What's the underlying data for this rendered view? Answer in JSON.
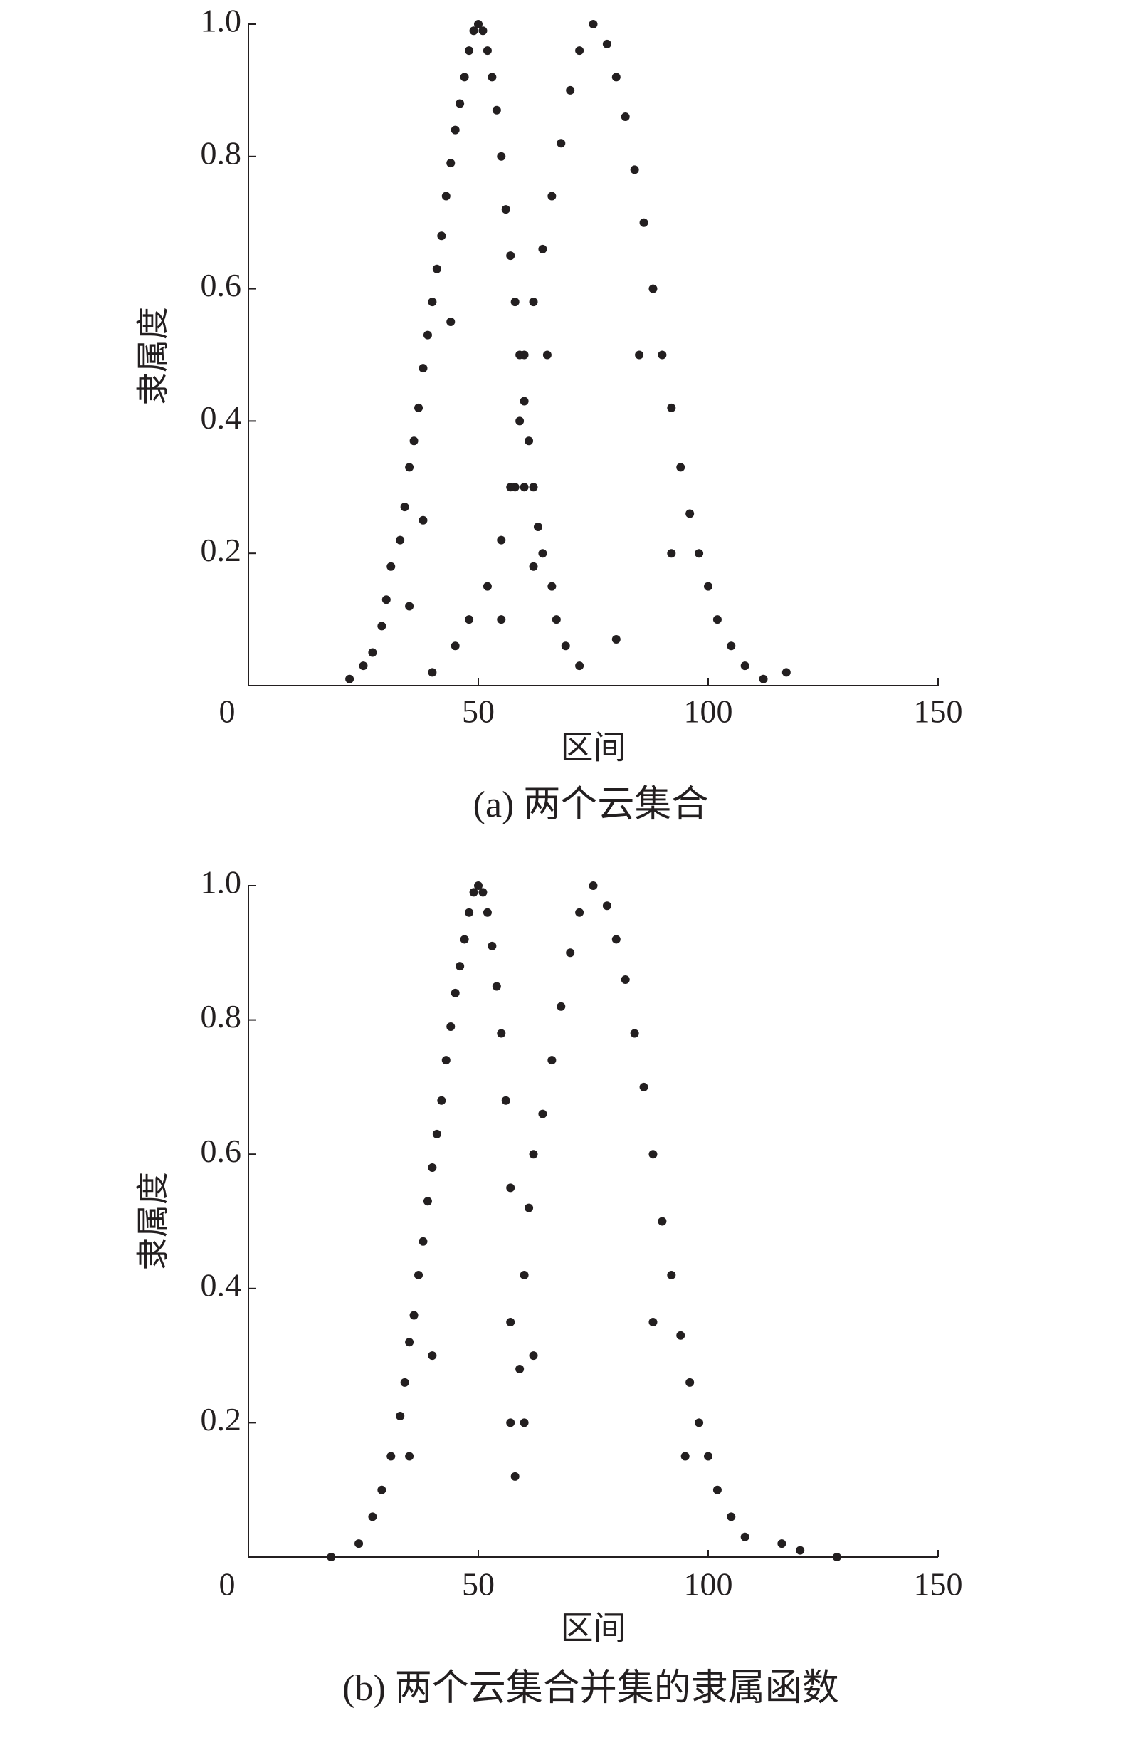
{
  "chart_data": [
    {
      "type": "scatter",
      "xlabel": "区间",
      "ylabel": "隶属度",
      "caption": "(a) 两个云集合",
      "color": "#231f20",
      "xlim": [
        0,
        150
      ],
      "xticks": [
        0,
        50,
        100,
        150
      ],
      "ylim": [
        0,
        1
      ],
      "yticks": [
        0.2,
        0.4,
        0.6,
        0.8,
        {
          "value": 1,
          "label": "1.0"
        }
      ],
      "x": [
        22,
        25,
        27,
        29,
        30,
        31,
        33,
        34,
        35,
        36,
        37,
        38,
        39,
        40,
        41,
        42,
        43,
        44,
        45,
        46,
        47,
        48,
        49,
        50,
        51,
        52,
        53,
        54,
        55,
        56,
        57,
        58,
        59,
        60,
        61,
        62,
        63,
        64,
        66,
        67,
        69,
        72,
        80,
        35,
        38,
        44,
        58,
        62,
        40,
        45,
        48,
        52,
        55,
        57,
        59,
        60,
        62,
        64,
        66,
        68,
        70,
        72,
        75,
        78,
        80,
        82,
        84,
        86,
        88,
        90,
        92,
        94,
        96,
        98,
        100,
        102,
        105,
        108,
        112,
        117,
        85,
        92,
        65,
        60,
        55
      ],
      "values": [
        0.01,
        0.03,
        0.05,
        0.09,
        0.13,
        0.18,
        0.22,
        0.27,
        0.33,
        0.37,
        0.42,
        0.48,
        0.53,
        0.58,
        0.63,
        0.68,
        0.74,
        0.79,
        0.84,
        0.88,
        0.92,
        0.96,
        0.99,
        1.0,
        0.99,
        0.96,
        0.92,
        0.87,
        0.8,
        0.72,
        0.65,
        0.58,
        0.5,
        0.43,
        0.37,
        0.3,
        0.24,
        0.2,
        0.15,
        0.1,
        0.06,
        0.03,
        0.07,
        0.12,
        0.25,
        0.55,
        0.3,
        0.18,
        0.02,
        0.06,
        0.1,
        0.15,
        0.22,
        0.3,
        0.4,
        0.5,
        0.58,
        0.66,
        0.74,
        0.82,
        0.9,
        0.96,
        1.0,
        0.97,
        0.92,
        0.86,
        0.78,
        0.7,
        0.6,
        0.5,
        0.42,
        0.33,
        0.26,
        0.2,
        0.15,
        0.1,
        0.06,
        0.03,
        0.01,
        0.02,
        0.5,
        0.2,
        0.5,
        0.3,
        0.1
      ]
    },
    {
      "type": "scatter",
      "xlabel": "区间",
      "ylabel": "隶属度",
      "caption": "(b) 两个云集合并集的隶属函数",
      "color": "#231f20",
      "xlim": [
        0,
        150
      ],
      "xticks": [
        0,
        50,
        100,
        150
      ],
      "ylim": [
        0,
        1
      ],
      "yticks": [
        0.2,
        0.4,
        0.6,
        0.8,
        {
          "value": 1,
          "label": "1.0"
        }
      ],
      "x": [
        18,
        24,
        27,
        29,
        31,
        33,
        34,
        35,
        36,
        37,
        38,
        39,
        40,
        41,
        42,
        43,
        44,
        45,
        46,
        47,
        48,
        49,
        50,
        51,
        52,
        53,
        54,
        55,
        56,
        57,
        57,
        57,
        58,
        59,
        60,
        61,
        62,
        64,
        66,
        68,
        70,
        72,
        75,
        78,
        80,
        82,
        84,
        86,
        88,
        90,
        92,
        94,
        96,
        98,
        100,
        102,
        105,
        108,
        116,
        120,
        128,
        35,
        40,
        88,
        95,
        62,
        60
      ],
      "values": [
        0.0,
        0.02,
        0.06,
        0.1,
        0.15,
        0.21,
        0.26,
        0.32,
        0.36,
        0.42,
        0.47,
        0.53,
        0.58,
        0.63,
        0.68,
        0.74,
        0.79,
        0.84,
        0.88,
        0.92,
        0.96,
        0.99,
        1.0,
        0.99,
        0.96,
        0.91,
        0.85,
        0.78,
        0.68,
        0.55,
        0.35,
        0.2,
        0.12,
        0.28,
        0.42,
        0.52,
        0.6,
        0.66,
        0.74,
        0.82,
        0.9,
        0.96,
        1.0,
        0.97,
        0.92,
        0.86,
        0.78,
        0.7,
        0.6,
        0.5,
        0.42,
        0.33,
        0.26,
        0.2,
        0.15,
        0.1,
        0.06,
        0.03,
        0.02,
        0.01,
        0.0,
        0.15,
        0.3,
        0.35,
        0.15,
        0.3,
        0.2
      ]
    }
  ]
}
